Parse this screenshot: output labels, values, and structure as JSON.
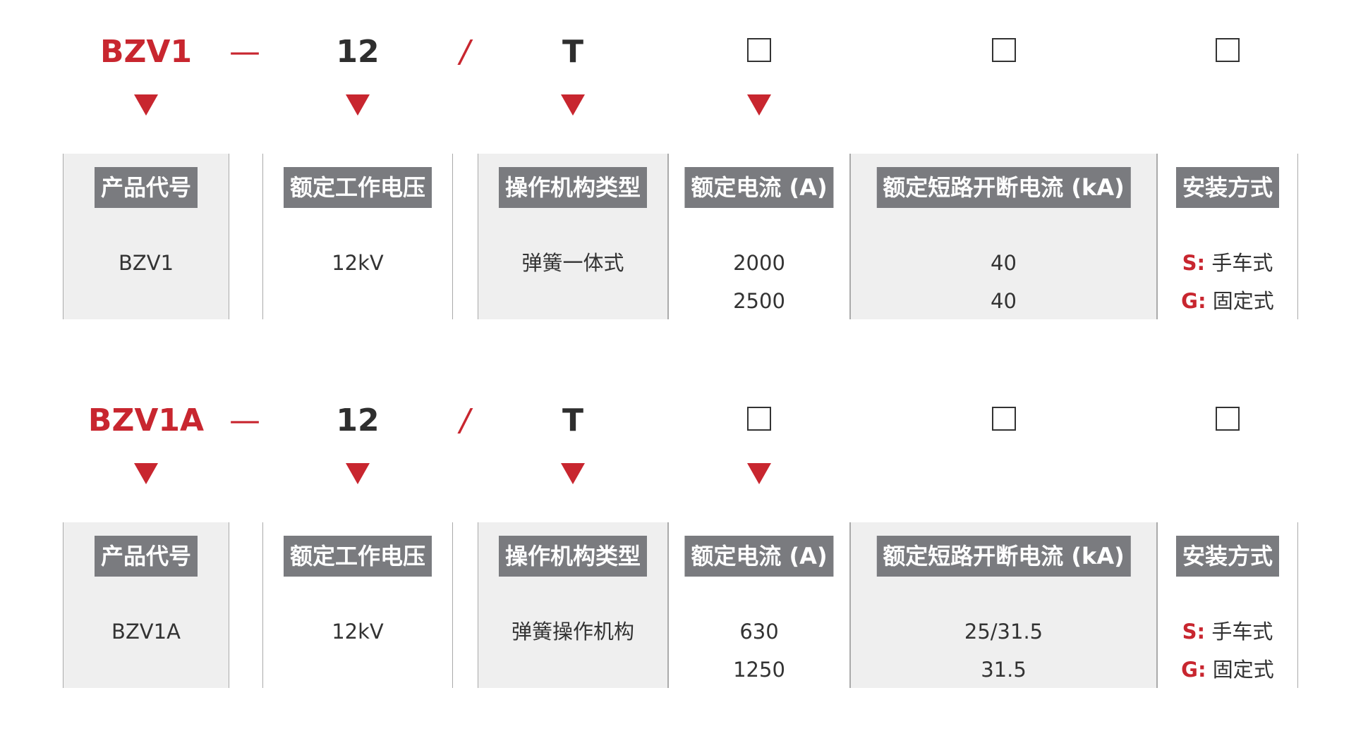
{
  "colors": {
    "accent": "#c8262f",
    "header_bg": "#7a7b7f",
    "shade": "#efefef"
  },
  "sections": [
    {
      "code": {
        "model": "BZV1",
        "dash": "—",
        "voltage": "12",
        "slash": "/",
        "mechanism": "T"
      },
      "placeholder_icon": "empty-square-icon",
      "columns": [
        {
          "header": "产品代号",
          "values": [
            "BZV1"
          ]
        },
        {
          "header": "额定工作电压",
          "values": [
            "12kV"
          ]
        },
        {
          "header": "操作机构类型",
          "values": [
            "弹簧一体式"
          ]
        },
        {
          "header": "额定电流 (A)",
          "values": [
            "2000",
            "2500"
          ]
        },
        {
          "header": "额定短路开断电流 (kA)",
          "values": [
            "40",
            "40"
          ]
        },
        {
          "header": "安装方式",
          "values": [
            {
              "key": "S:",
              "text": "手车式"
            },
            {
              "key": "G:",
              "text": "固定式"
            }
          ]
        }
      ]
    },
    {
      "code": {
        "model": "BZV1A",
        "dash": "—",
        "voltage": "12",
        "slash": "/",
        "mechanism": "T"
      },
      "placeholder_icon": "empty-square-icon",
      "columns": [
        {
          "header": "产品代号",
          "values": [
            "BZV1A"
          ]
        },
        {
          "header": "额定工作电压",
          "values": [
            "12kV"
          ]
        },
        {
          "header": "操作机构类型",
          "values": [
            "弹簧操作机构"
          ]
        },
        {
          "header": "额定电流 (A)",
          "values": [
            "630",
            "1250"
          ]
        },
        {
          "header": "额定短路开断电流 (kA)",
          "values": [
            "25/31.5",
            "31.5"
          ]
        },
        {
          "header": "安装方式",
          "values": [
            {
              "key": "S:",
              "text": "手车式"
            },
            {
              "key": "G:",
              "text": "固定式"
            }
          ]
        }
      ]
    }
  ]
}
